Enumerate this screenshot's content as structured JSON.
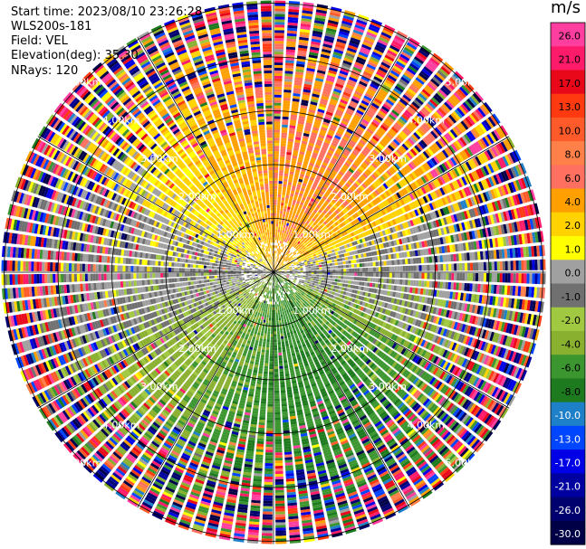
{
  "header": {
    "start_time_label": "Start time:",
    "start_time": "2023/08/10 23:26:28",
    "device": "WLS200s-181",
    "field_label": "Field:",
    "field": "VEL",
    "elevation_label": "Elevation(deg):",
    "elevation": "35.30",
    "nrays_label": "NRays:",
    "nrays": "120"
  },
  "chart_data": {
    "type": "ppi-polar-heatmap",
    "field": "VEL",
    "unit": "m/s",
    "n_rays": 120,
    "range_rings_km": [
      1.0,
      2.0,
      3.0,
      4.0,
      5.0
    ],
    "range_labels": [
      "1.00km",
      "2.00km",
      "3.00km",
      "4.00km",
      "5.00km"
    ],
    "max_range_km": 5.05,
    "center_low_gates_km": 0.5,
    "colorbar": {
      "title": "m/s",
      "ticks": [
        "26.0",
        "21.0",
        "17.0",
        "13.0",
        "10.0",
        "8.0",
        "6.0",
        "4.0",
        "2.0",
        "1.0",
        "0.0",
        "-1.0",
        "-2.0",
        "-4.0",
        "-6.0",
        "-8.0",
        "-10.0",
        "-13.0",
        "-17.0",
        "-21.0",
        "-26.0",
        "-30.0"
      ],
      "bins": [
        {
          "min": 26,
          "max": 30,
          "color": "#ff3ea0"
        },
        {
          "min": 21,
          "max": 26,
          "color": "#ff1a6a"
        },
        {
          "min": 17,
          "max": 21,
          "color": "#e8081a"
        },
        {
          "min": 13,
          "max": 17,
          "color": "#ff3a10"
        },
        {
          "min": 10,
          "max": 13,
          "color": "#ff5a2a"
        },
        {
          "min": 8,
          "max": 10,
          "color": "#ff8048"
        },
        {
          "min": 6,
          "max": 8,
          "color": "#ff7060"
        },
        {
          "min": 4,
          "max": 6,
          "color": "#ffa000"
        },
        {
          "min": 2,
          "max": 4,
          "color": "#ffd200"
        },
        {
          "min": 1,
          "max": 2,
          "color": "#ffff00"
        },
        {
          "min": 0,
          "max": 1,
          "color": "#a0a0a0"
        },
        {
          "min": -1,
          "max": 0,
          "color": "#707070"
        },
        {
          "min": -2,
          "max": -1,
          "color": "#a0c840"
        },
        {
          "min": -4,
          "max": -2,
          "color": "#8ab030"
        },
        {
          "min": -6,
          "max": -4,
          "color": "#3c9630"
        },
        {
          "min": -8,
          "max": -6,
          "color": "#1e7a1e"
        },
        {
          "min": -10,
          "max": -8,
          "color": "#1e80c8"
        },
        {
          "min": -13,
          "max": -10,
          "color": "#0046ff"
        },
        {
          "min": -17,
          "max": -13,
          "color": "#0000e6"
        },
        {
          "min": -21,
          "max": -17,
          "color": "#0000a0"
        },
        {
          "min": -26,
          "max": -21,
          "color": "#00006e"
        },
        {
          "min": -30,
          "max": -26,
          "color": "#000046"
        }
      ]
    },
    "velocity_pattern": "north-sector receding (+4 to +8 m/s), south-sector approaching (-2 to -6 m/s), weak near-zero east/west, noisy beyond ~3.5 km"
  }
}
